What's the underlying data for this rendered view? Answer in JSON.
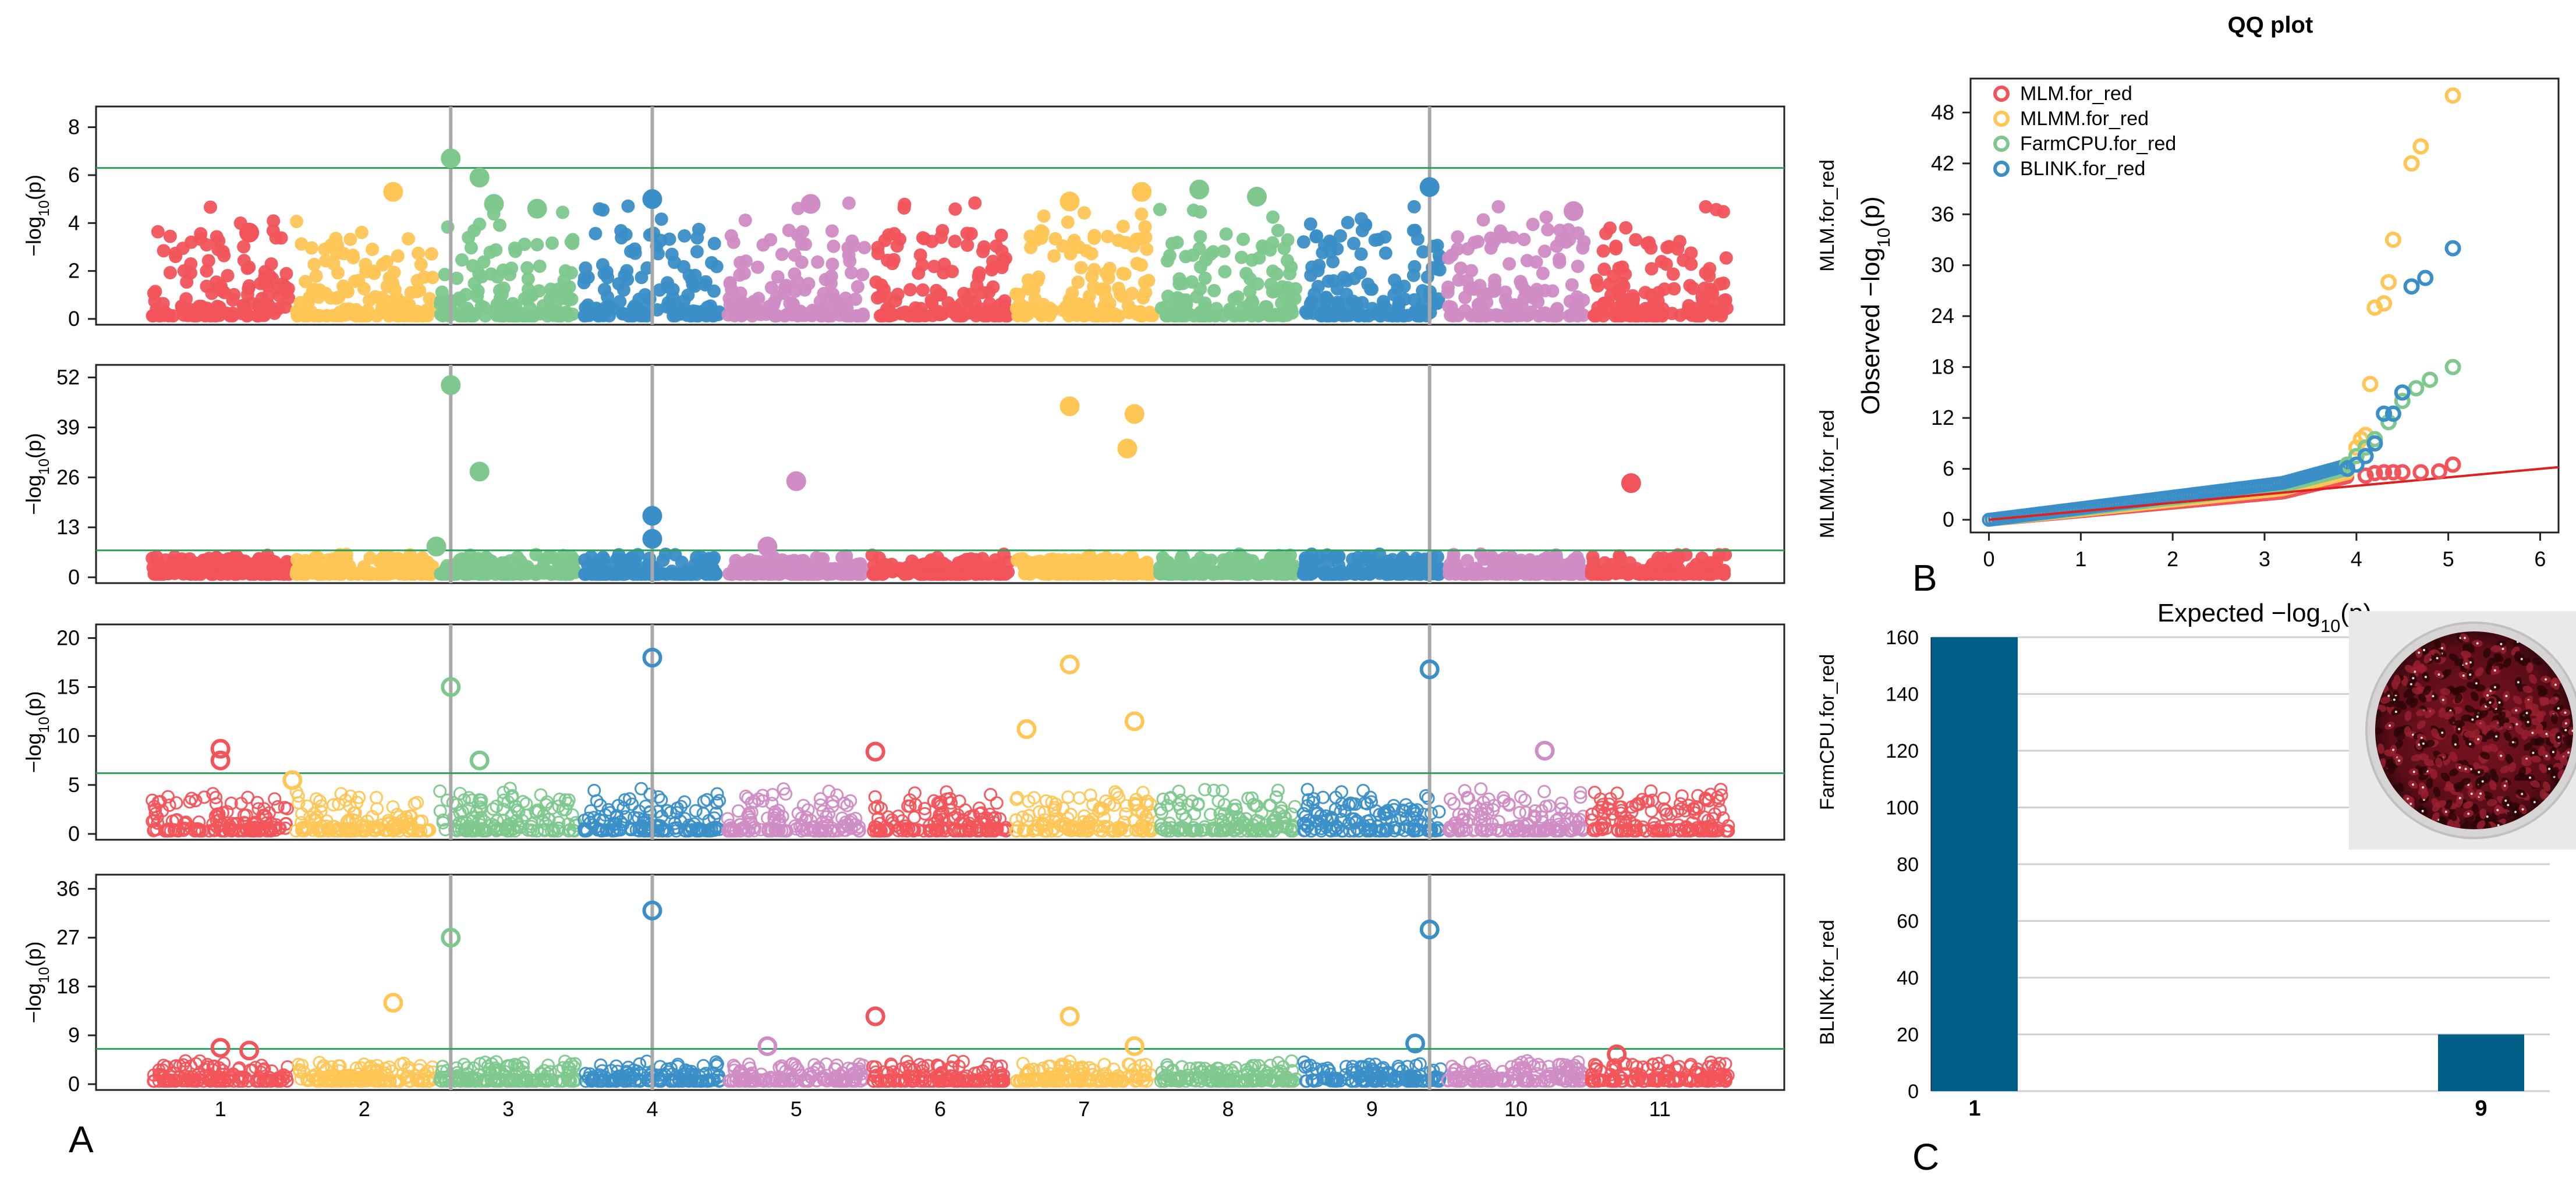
{
  "chart_data": [
    {
      "type": "scatter",
      "subtype": "manhattan",
      "panel": "A",
      "chromosomes": [
        "1",
        "2",
        "3",
        "4",
        "5",
        "6",
        "7",
        "8",
        "9",
        "10",
        "11"
      ],
      "chromosome_colors": [
        "#F2545B",
        "#FFC656",
        "#7EC88E",
        "#3A8FC8",
        "#D08CC4",
        "#F2545B",
        "#FFC656",
        "#7EC88E",
        "#3A8FC8",
        "#D08CC4",
        "#F2545B"
      ],
      "threshold_color": "#2E9E5B",
      "vline_color": "#A8A8A8",
      "vlines_at": [
        2.6,
        4.0,
        9.4
      ],
      "ylabel": "−log₁₀(p)",
      "tracks": [
        {
          "name": "MLM.for_red",
          "ylim": [
            0,
            8.5
          ],
          "ticks": [
            0,
            2,
            4,
            6,
            8
          ],
          "threshold": 6.3,
          "baseline": 3.6,
          "filled": true,
          "hits": [
            {
              "x": 2.6,
              "y": 6.7
            },
            {
              "x": 2.8,
              "y": 5.9
            },
            {
              "x": 2.9,
              "y": 4.8
            },
            {
              "x": 3.2,
              "y": 4.6
            },
            {
              "x": 4.0,
              "y": 5.0
            },
            {
              "x": 5.1,
              "y": 4.8
            },
            {
              "x": 6.9,
              "y": 4.9
            },
            {
              "x": 7.4,
              "y": 5.3
            },
            {
              "x": 7.8,
              "y": 5.4
            },
            {
              "x": 8.2,
              "y": 5.1
            },
            {
              "x": 9.4,
              "y": 5.5
            },
            {
              "x": 10.4,
              "y": 4.5
            },
            {
              "x": 1.2,
              "y": 3.6
            },
            {
              "x": 2.2,
              "y": 5.3
            }
          ]
        },
        {
          "name": "MLMM.for_red",
          "ylim": [
            0,
            53
          ],
          "ticks": [
            0,
            13,
            26,
            39,
            52
          ],
          "threshold": 7,
          "baseline": 4.5,
          "filled": true,
          "hits": [
            {
              "x": 2.6,
              "y": 50
            },
            {
              "x": 2.8,
              "y": 27.5
            },
            {
              "x": 4.0,
              "y": 16
            },
            {
              "x": 4.0,
              "y": 10
            },
            {
              "x": 5.0,
              "y": 25
            },
            {
              "x": 6.9,
              "y": 44.5
            },
            {
              "x": 7.35,
              "y": 42.5
            },
            {
              "x": 7.3,
              "y": 33.5
            },
            {
              "x": 10.8,
              "y": 24.5
            },
            {
              "x": 2.5,
              "y": 8
            },
            {
              "x": 4.8,
              "y": 8
            }
          ]
        },
        {
          "name": "FarmCPU.for_red",
          "ylim": [
            0,
            20.5
          ],
          "ticks": [
            0,
            5,
            10,
            15,
            20
          ],
          "threshold": 6.2,
          "baseline": 3.5,
          "filled": false,
          "hits": [
            {
              "x": 2.6,
              "y": 15
            },
            {
              "x": 2.8,
              "y": 7.5
            },
            {
              "x": 4.0,
              "y": 18
            },
            {
              "x": 5.55,
              "y": 8.4
            },
            {
              "x": 6.6,
              "y": 10.7
            },
            {
              "x": 6.9,
              "y": 17.3
            },
            {
              "x": 7.35,
              "y": 11.5
            },
            {
              "x": 9.4,
              "y": 16.8
            },
            {
              "x": 10.2,
              "y": 8.5
            },
            {
              "x": 1.0,
              "y": 8.7
            },
            {
              "x": 1.0,
              "y": 7.5
            },
            {
              "x": 1.5,
              "y": 5.5
            }
          ]
        },
        {
          "name": "BLINK.for_red",
          "ylim": [
            0,
            37
          ],
          "ticks": [
            0,
            9,
            18,
            27,
            36
          ],
          "threshold": 6.5,
          "baseline": 3.2,
          "filled": false,
          "hits": [
            {
              "x": 2.6,
              "y": 27
            },
            {
              "x": 2.2,
              "y": 15
            },
            {
              "x": 4.0,
              "y": 32
            },
            {
              "x": 5.55,
              "y": 12.5
            },
            {
              "x": 6.9,
              "y": 12.5
            },
            {
              "x": 9.4,
              "y": 28.5
            },
            {
              "x": 4.8,
              "y": 7
            },
            {
              "x": 7.35,
              "y": 7
            },
            {
              "x": 9.3,
              "y": 7.5
            },
            {
              "x": 10.7,
              "y": 5.5
            },
            {
              "x": 1.0,
              "y": 6.7
            },
            {
              "x": 1.2,
              "y": 6.2
            }
          ]
        }
      ]
    },
    {
      "type": "scatter",
      "subtype": "qq",
      "panel": "B",
      "title": "QQ plot",
      "xlabel": "Expected  −log₁₀(p)",
      "ylabel": "Observed  −log₁₀(p)",
      "xlim": [
        -0.2,
        6.2
      ],
      "ylim": [
        -1.5,
        52
      ],
      "xticks": [
        0,
        1,
        2,
        3,
        4,
        5,
        6
      ],
      "yticks": [
        0,
        6,
        12,
        18,
        24,
        30,
        36,
        42,
        48
      ],
      "diagonal_color": "#E02020",
      "series": [
        {
          "name": "MLM.for_red",
          "color": "#F2545B",
          "points": [
            [
              4.1,
              5.2
            ],
            [
              4.2,
              5.5
            ],
            [
              4.3,
              5.6
            ],
            [
              4.4,
              5.6
            ],
            [
              4.5,
              5.6
            ],
            [
              4.7,
              5.6
            ],
            [
              4.9,
              5.7
            ],
            [
              5.05,
              6.5
            ]
          ]
        },
        {
          "name": "MLMM.for_red",
          "color": "#FFC656",
          "points": [
            [
              4.0,
              8.5
            ],
            [
              4.05,
              9.5
            ],
            [
              4.1,
              10.0
            ],
            [
              4.15,
              16
            ],
            [
              4.2,
              25
            ],
            [
              4.3,
              25.5
            ],
            [
              4.35,
              28
            ],
            [
              4.4,
              33
            ],
            [
              4.6,
              42
            ],
            [
              4.7,
              44
            ],
            [
              5.05,
              50
            ]
          ]
        },
        {
          "name": "FarmCPU.for_red",
          "color": "#7EC88E",
          "points": [
            [
              3.9,
              6.5
            ],
            [
              4.0,
              7.5
            ],
            [
              4.1,
              8.5
            ],
            [
              4.2,
              9.5
            ],
            [
              4.35,
              11.5
            ],
            [
              4.5,
              14
            ],
            [
              4.65,
              15.5
            ],
            [
              4.8,
              16.5
            ],
            [
              5.05,
              18
            ]
          ]
        },
        {
          "name": "BLINK.for_red",
          "color": "#3A8FC8",
          "points": [
            [
              3.9,
              6.0
            ],
            [
              4.0,
              6.5
            ],
            [
              4.1,
              7.5
            ],
            [
              4.2,
              9
            ],
            [
              4.3,
              12.5
            ],
            [
              4.4,
              12.5
            ],
            [
              4.5,
              15
            ],
            [
              4.6,
              27.5
            ],
            [
              4.75,
              28.5
            ],
            [
              5.05,
              32
            ]
          ]
        }
      ]
    },
    {
      "type": "bar",
      "panel": "C",
      "categories": [
        "1",
        "9"
      ],
      "values": [
        160,
        20
      ],
      "ylim": [
        0,
        160
      ],
      "yticks": [
        0,
        20,
        40,
        60,
        80,
        100,
        120,
        140,
        160
      ],
      "bar_color": "#005F87",
      "inset": "red-beans-dish-photo"
    }
  ],
  "panel_labels": {
    "a": "A",
    "b": "B",
    "c": "C"
  }
}
